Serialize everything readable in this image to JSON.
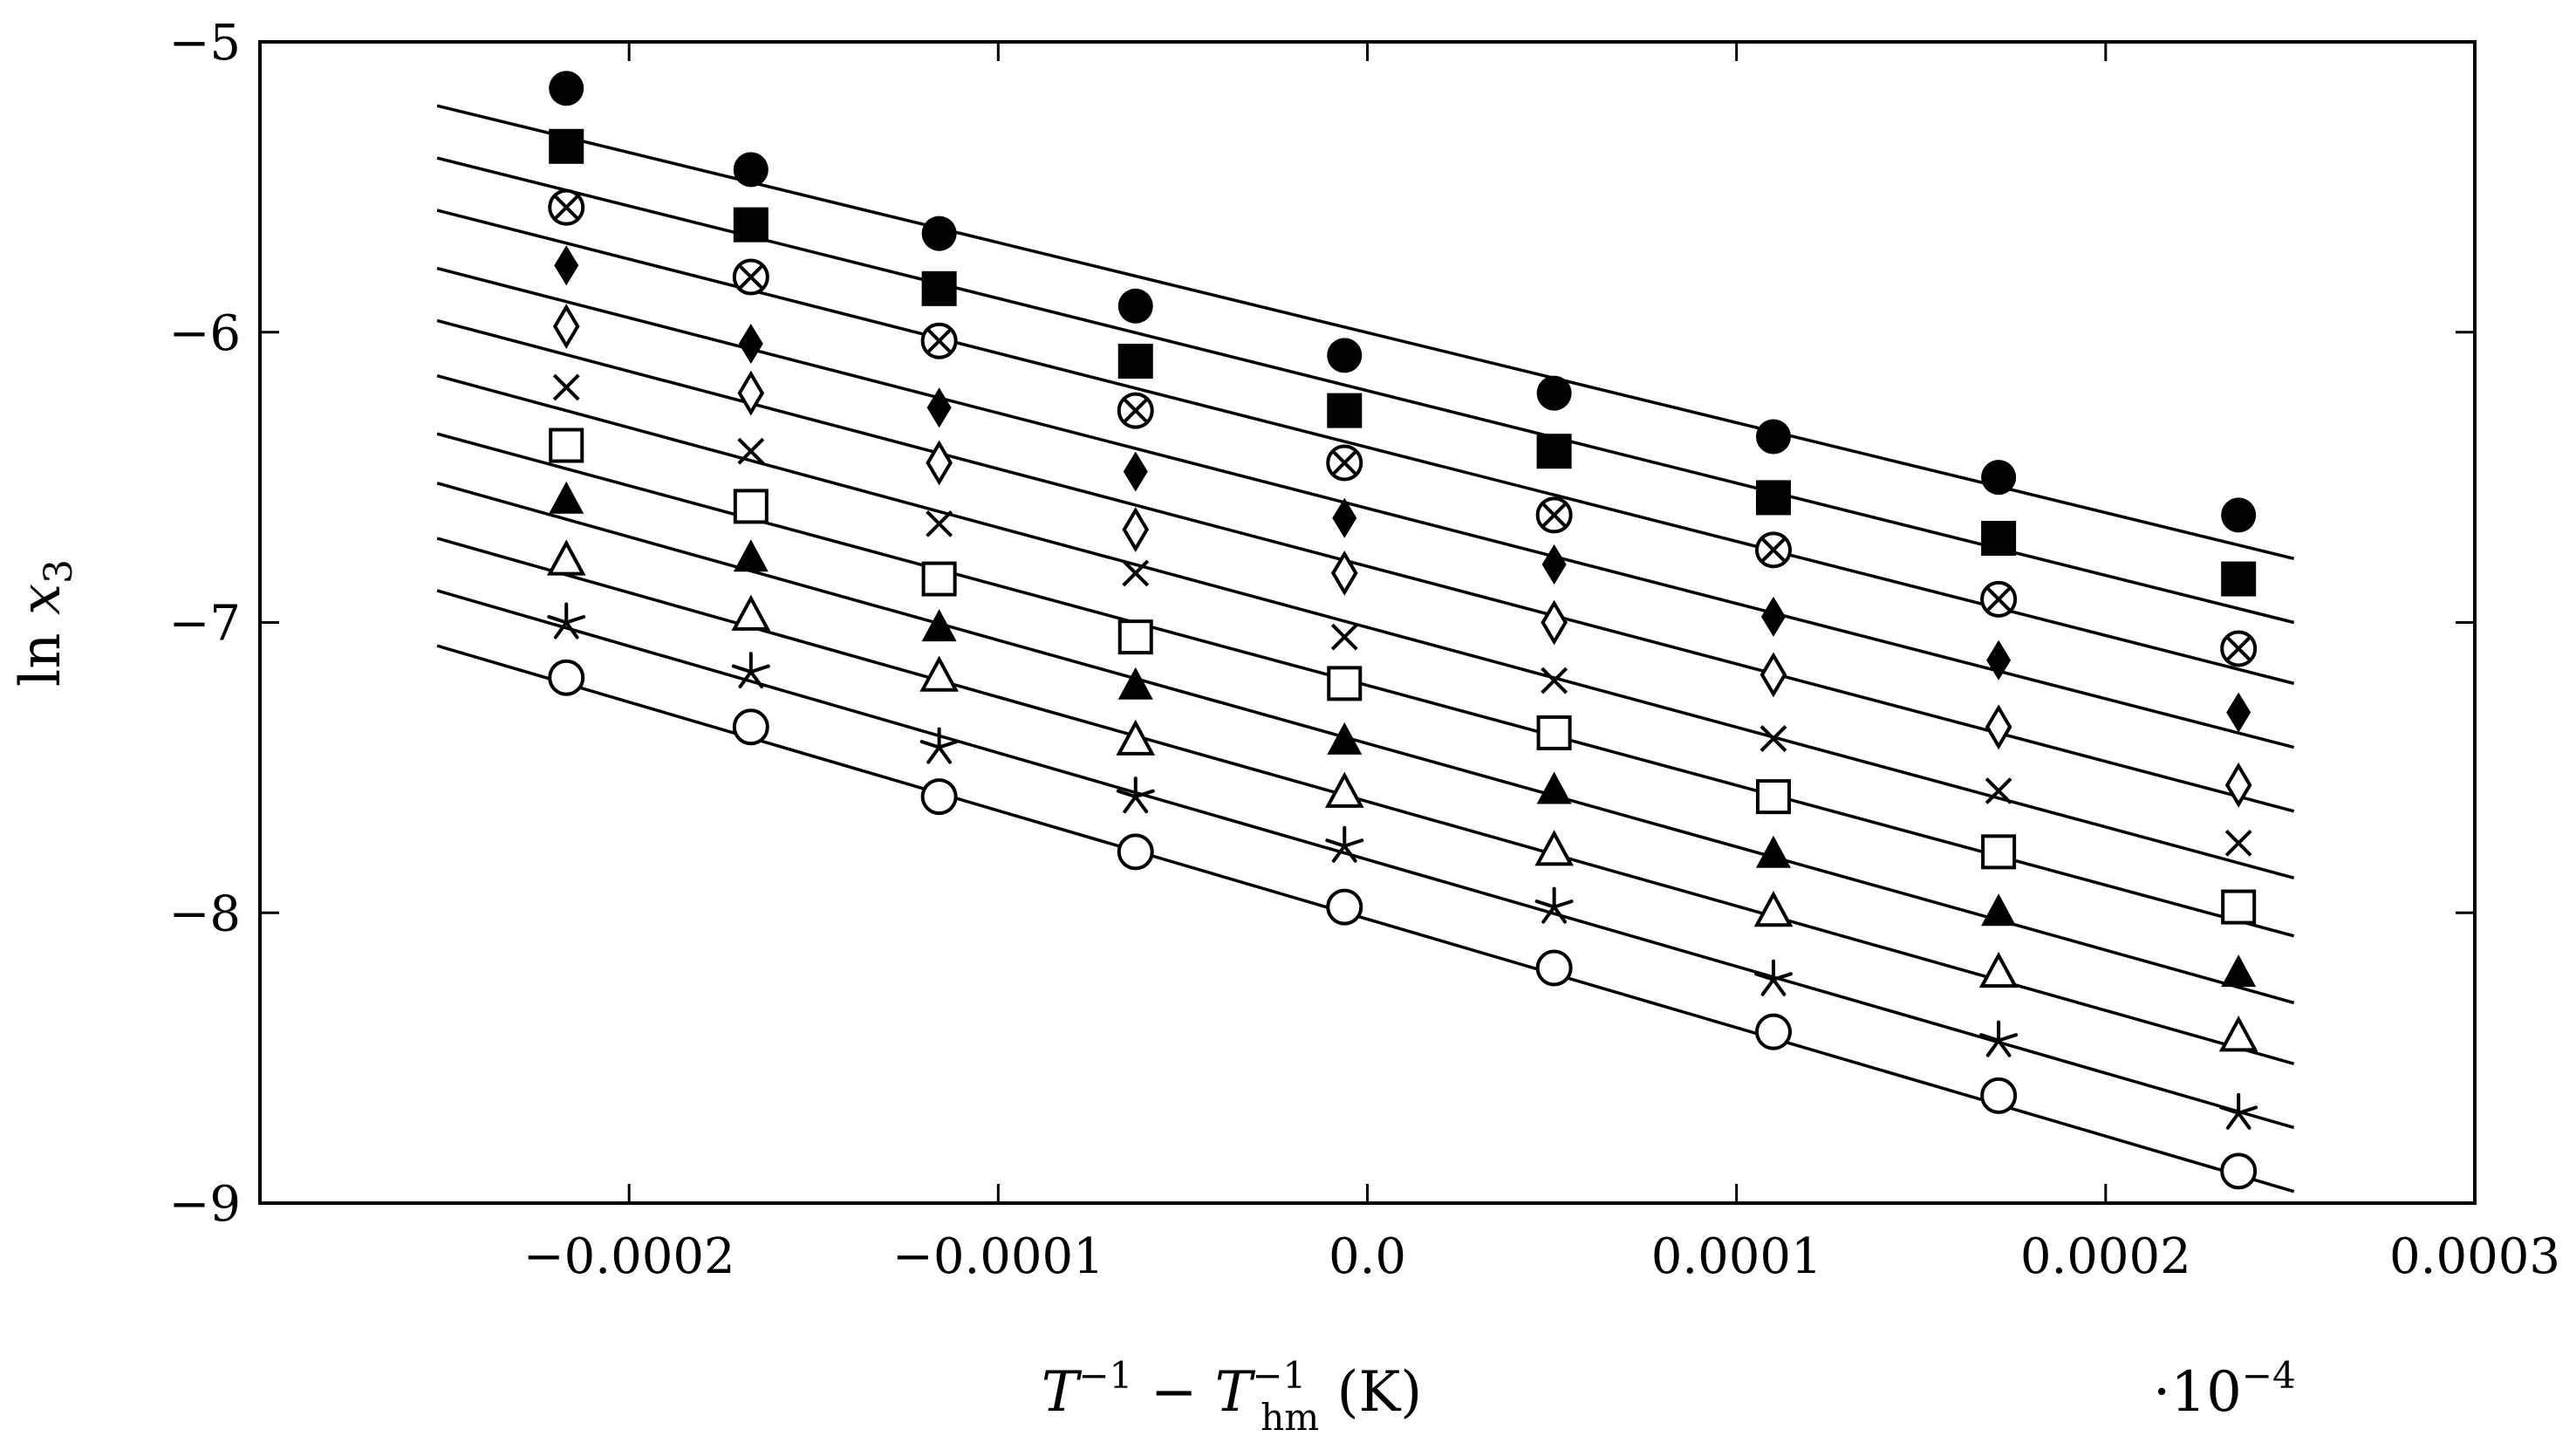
{
  "chart_data": {
    "type": "scatter",
    "title": "",
    "xlabel": {
      "main": "T",
      "sup1": "−1",
      "minus": " − ",
      "sub_main": "T",
      "sup2": "−1",
      "sub": "hm",
      "unit": " (K)"
    },
    "ylabel": {
      "main": "ln ",
      "var": "x",
      "sub": "3"
    },
    "x_multiplier": {
      "dot": "·10",
      "exp": "−4"
    },
    "xlim": [
      -0.0003,
      0.0003
    ],
    "ylim": [
      -9,
      -5
    ],
    "x_ticks": [
      -0.0002,
      -0.0001,
      0.0,
      0.0001,
      0.0002,
      0.0003
    ],
    "x_tick_labels": [
      "−0.0002",
      "−0.0001",
      "0.0",
      "0.0001",
      "0.0002",
      "0.0003"
    ],
    "y_ticks": [
      -9,
      -8,
      -7,
      -6,
      -5
    ],
    "y_tick_labels": [
      "−9",
      "−8",
      "−7",
      "−6",
      "−5"
    ],
    "grid": false,
    "legend": "none",
    "x": [
      -0.000217,
      -0.000167,
      -0.000116,
      -6.28e-05,
      -6.2e-06,
      5.06e-05,
      0.00011,
      0.000171,
      0.000236
    ],
    "line_x_range": [
      -0.000252,
      0.000251
    ],
    "series": [
      {
        "marker": "filled-circle",
        "values": [
          -5.16,
          -5.44,
          -5.66,
          -5.91,
          -6.08,
          -6.21,
          -6.36,
          -6.5,
          -6.63
        ],
        "fit": [
          -5.22,
          -6.78
        ]
      },
      {
        "marker": "filled-square",
        "values": [
          -5.36,
          -5.63,
          -5.85,
          -6.1,
          -6.27,
          -6.41,
          -6.57,
          -6.71,
          -6.85
        ],
        "fit": [
          -5.4,
          -7.0
        ]
      },
      {
        "marker": "circle-cross",
        "values": [
          -5.57,
          -5.81,
          -6.03,
          -6.27,
          -6.45,
          -6.63,
          -6.75,
          -6.92,
          -7.09
        ],
        "fit": [
          -5.58,
          -7.21
        ]
      },
      {
        "marker": "filled-diamond",
        "values": [
          -5.77,
          -6.04,
          -6.26,
          -6.48,
          -6.64,
          -6.8,
          -6.98,
          -7.13,
          -7.31
        ],
        "fit": [
          -5.78,
          -7.43
        ]
      },
      {
        "marker": "diamond",
        "values": [
          -5.98,
          -6.21,
          -6.45,
          -6.68,
          -6.83,
          -7.0,
          -7.18,
          -7.36,
          -7.56
        ],
        "fit": [
          -5.96,
          -7.65
        ]
      },
      {
        "marker": "cross",
        "values": [
          -6.19,
          -6.41,
          -6.66,
          -6.83,
          -7.05,
          -7.2,
          -7.4,
          -7.58,
          -7.76
        ],
        "fit": [
          -6.15,
          -7.88
        ]
      },
      {
        "marker": "square",
        "values": [
          -6.39,
          -6.6,
          -6.85,
          -7.05,
          -7.21,
          -7.38,
          -7.6,
          -7.79,
          -7.98
        ],
        "fit": [
          -6.35,
          -8.08
        ]
      },
      {
        "marker": "filled-triangle",
        "values": [
          -6.58,
          -6.78,
          -7.02,
          -7.22,
          -7.41,
          -7.58,
          -7.8,
          -8.0,
          -8.21
        ],
        "fit": [
          -6.52,
          -8.31
        ]
      },
      {
        "marker": "triangle",
        "values": [
          -6.79,
          -6.98,
          -7.19,
          -7.41,
          -7.59,
          -7.79,
          -8.0,
          -8.21,
          -8.43
        ],
        "fit": [
          -6.71,
          -8.52
        ]
      },
      {
        "marker": "star",
        "values": [
          -7.0,
          -7.17,
          -7.43,
          -7.6,
          -7.77,
          -7.98,
          -8.23,
          -8.44,
          -8.69
        ],
        "fit": [
          -6.89,
          -8.74
        ]
      },
      {
        "marker": "circle",
        "values": [
          -7.19,
          -7.36,
          -7.6,
          -7.79,
          -7.98,
          -8.19,
          -8.41,
          -8.63,
          -8.89
        ],
        "fit": [
          -7.08,
          -8.96
        ]
      }
    ]
  }
}
